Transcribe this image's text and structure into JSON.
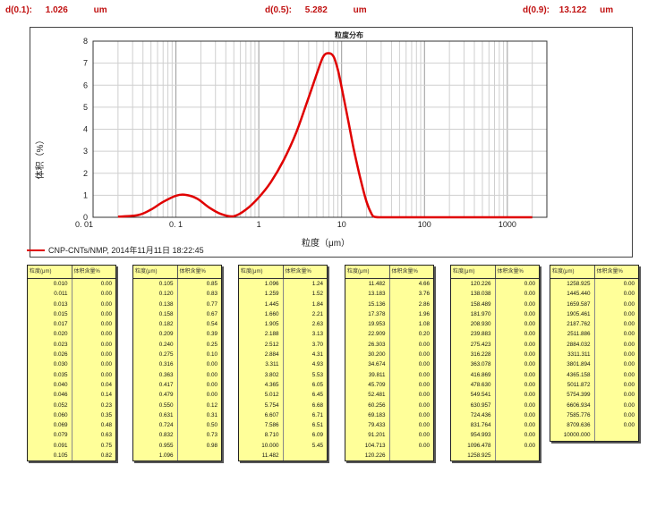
{
  "stats": [
    {
      "label": "d(0.1):",
      "value": "1.026",
      "unit": "um"
    },
    {
      "label": "d(0.5):",
      "value": "5.282",
      "unit": "um"
    },
    {
      "label": "d(0.9):",
      "value": "13.122",
      "unit": "um"
    }
  ],
  "chart_data": {
    "type": "line",
    "title": "粒度分布",
    "xlabel": "粒度（μm）",
    "ylabel": "体积（%）",
    "xscale": "log",
    "xlim": [
      0.01,
      3000
    ],
    "ylim": [
      0,
      8
    ],
    "x_ticks": [
      "0. 01",
      "0. 1",
      "1",
      "10",
      "100",
      "1000"
    ],
    "y_ticks": [
      "0",
      "1",
      "2",
      "3",
      "4",
      "5",
      "6",
      "7",
      "8"
    ],
    "grid": true,
    "series": [
      {
        "name": "CNP-CNTs/NMP, 2014年11月11日 18:22:45",
        "color": "#e00000",
        "x": [
          0.02,
          0.035,
          0.05,
          0.07,
          0.1,
          0.13,
          0.18,
          0.25,
          0.35,
          0.5,
          0.7,
          1.0,
          1.4,
          2.0,
          2.8,
          3.8,
          5.0,
          6.0,
          7.0,
          8.0,
          9.0,
          10.0,
          12.0,
          14.0,
          17.0,
          20.0,
          23.0,
          25.0,
          30.0,
          60.0,
          200.0,
          2000.0
        ],
        "y": [
          0.03,
          0.1,
          0.35,
          0.7,
          0.98,
          1.02,
          0.85,
          0.45,
          0.15,
          0.05,
          0.35,
          0.9,
          1.6,
          2.6,
          3.8,
          5.2,
          6.5,
          7.3,
          7.45,
          7.3,
          6.7,
          5.9,
          4.4,
          3.1,
          1.7,
          0.7,
          0.15,
          0.02,
          0.0,
          0.0,
          0.0,
          0.0
        ]
      }
    ]
  },
  "tables": [
    {
      "headers": [
        "粒度(μm)",
        "体积含量%"
      ],
      "rows": [
        [
          "0.010",
          "0.00"
        ],
        [
          "0.011",
          "0.00"
        ],
        [
          "0.013",
          "0.00"
        ],
        [
          "0.015",
          "0.00"
        ],
        [
          "0.017",
          "0.00"
        ],
        [
          "0.020",
          "0.00"
        ],
        [
          "0.023",
          "0.00"
        ],
        [
          "0.026",
          "0.00"
        ],
        [
          "0.030",
          "0.00"
        ],
        [
          "0.035",
          "0.00"
        ],
        [
          "0.040",
          "0.04"
        ],
        [
          "0.046",
          "0.14"
        ],
        [
          "0.052",
          "0.23"
        ],
        [
          "0.060",
          "0.35"
        ],
        [
          "0.069",
          "0.48"
        ],
        [
          "0.079",
          "0.63"
        ],
        [
          "0.091",
          "0.75"
        ],
        [
          "0.105",
          "0.82"
        ]
      ]
    },
    {
      "headers": [
        "粒度(μm)",
        "体积含量%"
      ],
      "rows": [
        [
          "0.105",
          "0.85"
        ],
        [
          "0.120",
          "0.83"
        ],
        [
          "0.138",
          "0.77"
        ],
        [
          "0.158",
          "0.67"
        ],
        [
          "0.182",
          "0.54"
        ],
        [
          "0.209",
          "0.39"
        ],
        [
          "0.240",
          "0.25"
        ],
        [
          "0.275",
          "0.10"
        ],
        [
          "0.316",
          "0.00"
        ],
        [
          "0.363",
          "0.00"
        ],
        [
          "0.417",
          "0.00"
        ],
        [
          "0.479",
          "0.00"
        ],
        [
          "0.550",
          "0.12"
        ],
        [
          "0.631",
          "0.31"
        ],
        [
          "0.724",
          "0.50"
        ],
        [
          "0.832",
          "0.73"
        ],
        [
          "0.955",
          "0.98"
        ],
        [
          "1.096",
          ""
        ]
      ]
    },
    {
      "headers": [
        "粒度(μm)",
        "体积含量%"
      ],
      "rows": [
        [
          "1.096",
          "1.24"
        ],
        [
          "1.259",
          "1.52"
        ],
        [
          "1.445",
          "1.84"
        ],
        [
          "1.660",
          "2.21"
        ],
        [
          "1.905",
          "2.63"
        ],
        [
          "2.188",
          "3.13"
        ],
        [
          "2.512",
          "3.70"
        ],
        [
          "2.884",
          "4.31"
        ],
        [
          "3.311",
          "4.93"
        ],
        [
          "3.802",
          "5.53"
        ],
        [
          "4.365",
          "6.05"
        ],
        [
          "5.012",
          "6.45"
        ],
        [
          "5.754",
          "6.68"
        ],
        [
          "6.607",
          "6.71"
        ],
        [
          "7.586",
          "6.51"
        ],
        [
          "8.710",
          "6.09"
        ],
        [
          "10.000",
          "5.45"
        ],
        [
          "11.482",
          ""
        ]
      ]
    },
    {
      "headers": [
        "粒度(μm)",
        "体积含量%"
      ],
      "rows": [
        [
          "11.482",
          "4.66"
        ],
        [
          "13.183",
          "3.76"
        ],
        [
          "15.136",
          "2.86"
        ],
        [
          "17.378",
          "1.96"
        ],
        [
          "19.953",
          "1.08"
        ],
        [
          "22.909",
          "0.20"
        ],
        [
          "26.303",
          "0.00"
        ],
        [
          "30.200",
          "0.00"
        ],
        [
          "34.674",
          "0.00"
        ],
        [
          "39.811",
          "0.00"
        ],
        [
          "45.709",
          "0.00"
        ],
        [
          "52.481",
          "0.00"
        ],
        [
          "60.256",
          "0.00"
        ],
        [
          "69.183",
          "0.00"
        ],
        [
          "79.433",
          "0.00"
        ],
        [
          "91.201",
          "0.00"
        ],
        [
          "104.713",
          "0.00"
        ],
        [
          "120.226",
          ""
        ]
      ]
    },
    {
      "headers": [
        "粒度(μm)",
        "体积含量%"
      ],
      "rows": [
        [
          "120.226",
          "0.00"
        ],
        [
          "138.038",
          "0.00"
        ],
        [
          "158.489",
          "0.00"
        ],
        [
          "181.970",
          "0.00"
        ],
        [
          "208.930",
          "0.00"
        ],
        [
          "239.883",
          "0.00"
        ],
        [
          "275.423",
          "0.00"
        ],
        [
          "316.228",
          "0.00"
        ],
        [
          "363.078",
          "0.00"
        ],
        [
          "416.869",
          "0.00"
        ],
        [
          "478.630",
          "0.00"
        ],
        [
          "549.541",
          "0.00"
        ],
        [
          "630.957",
          "0.00"
        ],
        [
          "724.436",
          "0.00"
        ],
        [
          "831.764",
          "0.00"
        ],
        [
          "954.993",
          "0.00"
        ],
        [
          "1096.478",
          "0.00"
        ],
        [
          "1258.925",
          ""
        ]
      ]
    },
    {
      "headers": [
        "粒度(μm)",
        "体积含量%"
      ],
      "rows": [
        [
          "1258.925",
          "0.00"
        ],
        [
          "1445.440",
          "0.00"
        ],
        [
          "1659.587",
          "0.00"
        ],
        [
          "1905.461",
          "0.00"
        ],
        [
          "2187.762",
          "0.00"
        ],
        [
          "2511.886",
          "0.00"
        ],
        [
          "2884.032",
          "0.00"
        ],
        [
          "3311.311",
          "0.00"
        ],
        [
          "3801.894",
          "0.00"
        ],
        [
          "4365.158",
          "0.00"
        ],
        [
          "5011.872",
          "0.00"
        ],
        [
          "5754.399",
          "0.00"
        ],
        [
          "6606.934",
          "0.00"
        ],
        [
          "7585.776",
          "0.00"
        ],
        [
          "8709.636",
          "0.00"
        ],
        [
          "10000.000",
          ""
        ]
      ]
    }
  ]
}
